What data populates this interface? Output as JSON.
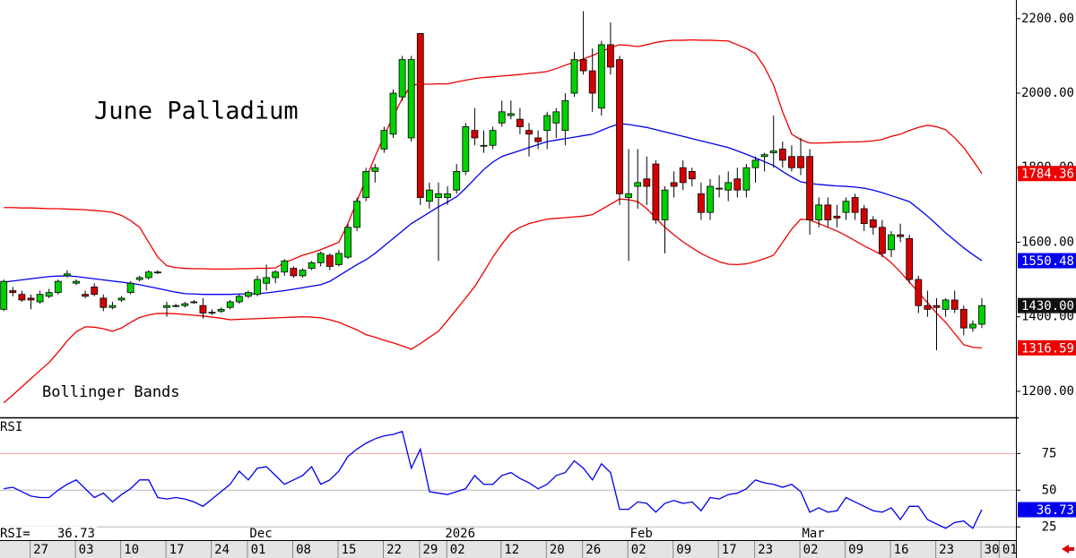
{
  "chart_data": [
    {
      "type": "candlestick",
      "title": "June Palladium",
      "annotation": "Bollinger Bands",
      "categories": [
        null,
        null,
        null,
        null,
        "27",
        null,
        null,
        null,
        null,
        "03",
        null,
        null,
        null,
        null,
        "10",
        null,
        null,
        null,
        null,
        "17",
        null,
        null,
        null,
        null,
        "24",
        null,
        null,
        null,
        "01",
        null,
        null,
        null,
        null,
        "08",
        null,
        null,
        null,
        null,
        "15",
        null,
        null,
        null,
        null,
        "22",
        null,
        null,
        null,
        "29",
        null,
        null,
        "02",
        null,
        null,
        null,
        null,
        null,
        "12",
        null,
        null,
        null,
        null,
        "20",
        null,
        null,
        null,
        "26",
        null,
        null,
        null,
        null,
        "02",
        null,
        null,
        null,
        null,
        "09",
        null,
        null,
        null,
        null,
        "17",
        null,
        null,
        null,
        "23",
        null,
        null,
        null,
        null,
        "02",
        null,
        null,
        null,
        null,
        "09",
        null,
        null,
        null,
        null,
        "16",
        null,
        null,
        null,
        null,
        "23",
        null,
        null,
        null,
        null,
        "30",
        null,
        "01"
      ],
      "period_labels": [
        null,
        null,
        null,
        null,
        null,
        null,
        null,
        null,
        null,
        null,
        null,
        null,
        null,
        null,
        null,
        null,
        null,
        null,
        null,
        null,
        null,
        null,
        null,
        null,
        null,
        null,
        null,
        null,
        "Dec",
        null,
        null,
        null,
        null,
        null,
        null,
        null,
        null,
        null,
        null,
        null,
        null,
        null,
        null,
        null,
        null,
        null,
        null,
        null,
        null,
        null,
        "2026",
        null,
        null,
        null,
        null,
        null,
        null,
        null,
        null,
        null,
        null,
        null,
        null,
        null,
        null,
        null,
        null,
        null,
        null,
        null,
        "Feb",
        null,
        null,
        null,
        null,
        null,
        null,
        null,
        null,
        null,
        null,
        null,
        null,
        null,
        null,
        null,
        null,
        null,
        null,
        "Mar",
        null,
        null,
        null,
        null,
        null,
        null,
        null,
        null,
        null,
        null,
        null,
        null,
        null,
        null,
        null,
        null,
        null,
        null,
        null,
        null,
        null,
        null
      ],
      "open": [
        1420,
        1470,
        1460,
        1450,
        1440,
        1455,
        1465,
        1510,
        1490,
        1460,
        1480,
        1450,
        1425,
        1445,
        1465,
        1500,
        1505,
        1520,
        1425,
        1430,
        1430,
        1440,
        1430,
        1410,
        1415,
        1425,
        1440,
        1455,
        1460,
        1490,
        1505,
        1520,
        1530,
        1510,
        1530,
        1545,
        1565,
        1540,
        1560,
        1640,
        1720,
        1790,
        1850,
        1890,
        1990,
        1880,
        2160,
        1710,
        1720,
        1720,
        1740,
        1790,
        1900,
        1860,
        1860,
        1920,
        1940,
        1930,
        1900,
        1880,
        1900,
        1920,
        1900,
        2000,
        2090,
        2060,
        1960,
        2130,
        2090,
        1720,
        1750,
        1770,
        1810,
        1660,
        1760,
        1800,
        1790,
        1730,
        1680,
        1745,
        1740,
        1770,
        1740,
        1800,
        1830,
        1840,
        1850,
        1830,
        1830,
        1830,
        1660,
        1700,
        1670,
        1680,
        1720,
        1690,
        1660,
        1640,
        1580,
        1620,
        1610,
        1500,
        1430,
        1430,
        1420,
        1445,
        1420,
        1370,
        1380,
        null,
        null,
        null
      ],
      "high": [
        1500,
        1480,
        1470,
        1460,
        1470,
        1475,
        1500,
        1525,
        1500,
        1470,
        1490,
        1460,
        1440,
        1455,
        1495,
        1510,
        1525,
        1525,
        1440,
        1435,
        1440,
        1445,
        1450,
        1420,
        1425,
        1445,
        1460,
        1470,
        1510,
        1540,
        1525,
        1555,
        1535,
        1530,
        1550,
        1575,
        1570,
        1580,
        1650,
        1720,
        1800,
        1810,
        1910,
        2010,
        2100,
        2100,
        2160,
        1760,
        1760,
        1750,
        1810,
        1920,
        1960,
        1900,
        1910,
        1980,
        1980,
        1960,
        1920,
        1900,
        1950,
        1960,
        2000,
        2110,
        2220,
        2120,
        2140,
        2190,
        2100,
        1850,
        1850,
        1830,
        1820,
        1750,
        1790,
        1820,
        1800,
        1760,
        1770,
        1780,
        1790,
        1800,
        1810,
        1830,
        1840,
        1940,
        1870,
        1860,
        1880,
        1850,
        1720,
        1720,
        1700,
        1720,
        1730,
        1700,
        1670,
        1660,
        1630,
        1650,
        1620,
        1510,
        1470,
        1450,
        1450,
        1470,
        1430,
        1390,
        1450,
        null,
        null,
        null
      ],
      "low": [
        1415,
        1455,
        1440,
        1420,
        1435,
        1450,
        1460,
        1505,
        1485,
        1450,
        1455,
        1415,
        1420,
        1440,
        1460,
        1495,
        1500,
        1515,
        1400,
        1425,
        1425,
        1435,
        1395,
        1405,
        1410,
        1420,
        1435,
        1450,
        1455,
        1470,
        1490,
        1510,
        1505,
        1505,
        1525,
        1535,
        1525,
        1535,
        1555,
        1630,
        1710,
        1760,
        1840,
        1880,
        1980,
        1870,
        1700,
        1690,
        1550,
        1700,
        1730,
        1780,
        1860,
        1840,
        1850,
        1910,
        1930,
        1890,
        1830,
        1850,
        1850,
        1880,
        1860,
        1990,
        2050,
        1950,
        1940,
        2050,
        1700,
        1550,
        1690,
        1700,
        1650,
        1570,
        1720,
        1740,
        1750,
        1660,
        1660,
        1720,
        1710,
        1720,
        1720,
        1760,
        1790,
        1800,
        1800,
        1790,
        1780,
        1620,
        1640,
        1640,
        1640,
        1660,
        1660,
        1630,
        1620,
        1560,
        1560,
        1600,
        1490,
        1410,
        1400,
        1310,
        1400,
        1410,
        1350,
        1360,
        1370,
        null,
        null,
        null
      ],
      "close": [
        1495,
        1465,
        1445,
        1445,
        1460,
        1465,
        1495,
        1515,
        1495,
        1455,
        1460,
        1425,
        1430,
        1450,
        1490,
        1505,
        1520,
        1520,
        1430,
        1430,
        1435,
        1438,
        1410,
        1412,
        1420,
        1440,
        1455,
        1465,
        1500,
        1505,
        1520,
        1550,
        1510,
        1525,
        1545,
        1570,
        1535,
        1570,
        1640,
        1710,
        1790,
        1800,
        1900,
        2000,
        2090,
        2090,
        1720,
        1740,
        1730,
        1730,
        1790,
        1910,
        1880,
        1860,
        1900,
        1950,
        1945,
        1910,
        1890,
        1870,
        1940,
        1950,
        1980,
        2090,
        2060,
        2000,
        2130,
        2070,
        1730,
        1730,
        1760,
        1750,
        1660,
        1740,
        1750,
        1760,
        1770,
        1680,
        1750,
        1745,
        1760,
        1740,
        1800,
        1820,
        1835,
        1845,
        1820,
        1800,
        1800,
        1660,
        1700,
        1660,
        1665,
        1710,
        1680,
        1650,
        1640,
        1570,
        1620,
        1615,
        1500,
        1430,
        1420,
        1425,
        1445,
        1420,
        1370,
        1380,
        1430,
        null,
        null,
        null
      ],
      "close_label": "1430.00",
      "up_color": "#00d200",
      "down_color": "#d40000",
      "upper_band": {
        "color": "#ee0000",
        "values": [
          1693,
          1693,
          1692,
          1692,
          1691,
          1690,
          1690,
          1689,
          1688,
          1687,
          1685,
          1683,
          1680,
          1672,
          1658,
          1640,
          1600,
          1560,
          1537,
          1532,
          1530,
          1529,
          1529,
          1528,
          1528,
          1528,
          1529,
          1529,
          1530,
          1530,
          1531,
          1545,
          1555,
          1565,
          1572,
          1580,
          1590,
          1600,
          1650,
          1710,
          1770,
          1830,
          1885,
          1938,
          1985,
          2022,
          2024,
          2024,
          2025,
          2025,
          2030,
          2035,
          2039,
          2042,
          2044,
          2046,
          2048,
          2050,
          2053,
          2055,
          2058,
          2066,
          2075,
          2083,
          2092,
          2101,
          2112,
          2122,
          2130,
          2128,
          2125,
          2130,
          2136,
          2140,
          2142,
          2142,
          2143,
          2142,
          2142,
          2141,
          2140,
          2130,
          2120,
          2106,
          2070,
          2022,
          1950,
          1890,
          1875,
          1866,
          1866,
          1867,
          1868,
          1869,
          1869,
          1870,
          1872,
          1876,
          1884,
          1890,
          1900,
          1908,
          1914,
          1910,
          1902,
          1880,
          1854,
          1820,
          1784.36,
          null,
          null,
          null
        ]
      },
      "middle_band": {
        "color": "#0000ee",
        "values": [
          1493,
          1496,
          1499,
          1502,
          1505,
          1508,
          1509,
          1510,
          1508,
          1505,
          1502,
          1499,
          1496,
          1493,
          1490,
          1486,
          1481,
          1476,
          1471,
          1466,
          1462,
          1461,
          1460,
          1460,
          1460,
          1460,
          1461,
          1461,
          1462,
          1464,
          1467,
          1470,
          1474,
          1478,
          1482,
          1486,
          1495,
          1510,
          1525,
          1540,
          1553,
          1570,
          1590,
          1610,
          1630,
          1650,
          1665,
          1680,
          1695,
          1708,
          1722,
          1745,
          1770,
          1795,
          1815,
          1830,
          1838,
          1846,
          1854,
          1862,
          1870,
          1874,
          1878,
          1882,
          1886,
          1890,
          1900,
          1910,
          1918,
          1916,
          1912,
          1908,
          1902,
          1896,
          1890,
          1884,
          1878,
          1872,
          1866,
          1860,
          1854,
          1845,
          1836,
          1826,
          1816,
          1806,
          1790,
          1775,
          1762,
          1758,
          1755,
          1753,
          1751,
          1750,
          1748,
          1745,
          1740,
          1733,
          1725,
          1717,
          1709,
          1690,
          1670,
          1648,
          1625,
          1605,
          1585,
          1567,
          1550.48,
          null,
          null,
          null
        ]
      },
      "lower_band": {
        "color": "#ee0000",
        "values": [
          1169,
          1190,
          1212,
          1234,
          1256,
          1277,
          1305,
          1335,
          1360,
          1373,
          1372,
          1368,
          1361,
          1370,
          1385,
          1398,
          1405,
          1409,
          1409,
          1408,
          1406,
          1404,
          1402,
          1399,
          1396,
          1392,
          1393,
          1394,
          1395,
          1396,
          1397,
          1398,
          1399,
          1400,
          1399,
          1397,
          1392,
          1385,
          1375,
          1365,
          1352,
          1345,
          1337,
          1330,
          1322,
          1313,
          1328,
          1345,
          1361,
          1390,
          1420,
          1450,
          1481,
          1520,
          1560,
          1595,
          1625,
          1640,
          1650,
          1656,
          1662,
          1664,
          1666,
          1668,
          1670,
          1674,
          1688,
          1702,
          1716,
          1714,
          1709,
          1690,
          1665,
          1640,
          1620,
          1601,
          1585,
          1570,
          1558,
          1548,
          1541,
          1540,
          1542,
          1548,
          1556,
          1565,
          1600,
          1635,
          1662,
          1660,
          1650,
          1640,
          1630,
          1618,
          1604,
          1590,
          1578,
          1565,
          1545,
          1520,
          1493,
          1465,
          1438,
          1410,
          1385,
          1355,
          1325,
          1318,
          1316.59,
          null,
          null,
          null
        ]
      },
      "ylim": [
        1130,
        2250
      ],
      "yticks": [
        {
          "value": 2200,
          "label": "2200.00"
        },
        {
          "value": 2000,
          "label": "2000.00"
        },
        {
          "value": 1800,
          "label": "1800.00"
        },
        {
          "value": 1600,
          "label": "1600.00"
        },
        {
          "value": 1400,
          "label": "1400.00"
        },
        {
          "value": 1200,
          "label": "1200.00"
        }
      ]
    },
    {
      "type": "line",
      "title": "RSI",
      "readout_label": "RSI=",
      "color": "#0000ee",
      "values": [
        51,
        52,
        49,
        46,
        45,
        45,
        50,
        54,
        57,
        51,
        45,
        48,
        42,
        47,
        51,
        57,
        57,
        45,
        44,
        45,
        44,
        42,
        39,
        44,
        49,
        54,
        63,
        57,
        65,
        66,
        60,
        54,
        57,
        60,
        66,
        54,
        57,
        63,
        73,
        78,
        82,
        85,
        87,
        88,
        90,
        65,
        78,
        49,
        48,
        47,
        49,
        51,
        60,
        54,
        54,
        60,
        62,
        58,
        55,
        51,
        54,
        60,
        62,
        70,
        65,
        57,
        68,
        62,
        37,
        37,
        42,
        41,
        35,
        41,
        43,
        41,
        42,
        36,
        45,
        44,
        47,
        48,
        51,
        57,
        55,
        54,
        52,
        54,
        49,
        35,
        38,
        35,
        36,
        45,
        42,
        39,
        36,
        35,
        38,
        30,
        39,
        39,
        30,
        27,
        24,
        28,
        29,
        24,
        36.73,
        null,
        null,
        null
      ],
      "ylim": [
        16,
        99
      ],
      "yticks": [
        75,
        50,
        25
      ]
    }
  ]
}
